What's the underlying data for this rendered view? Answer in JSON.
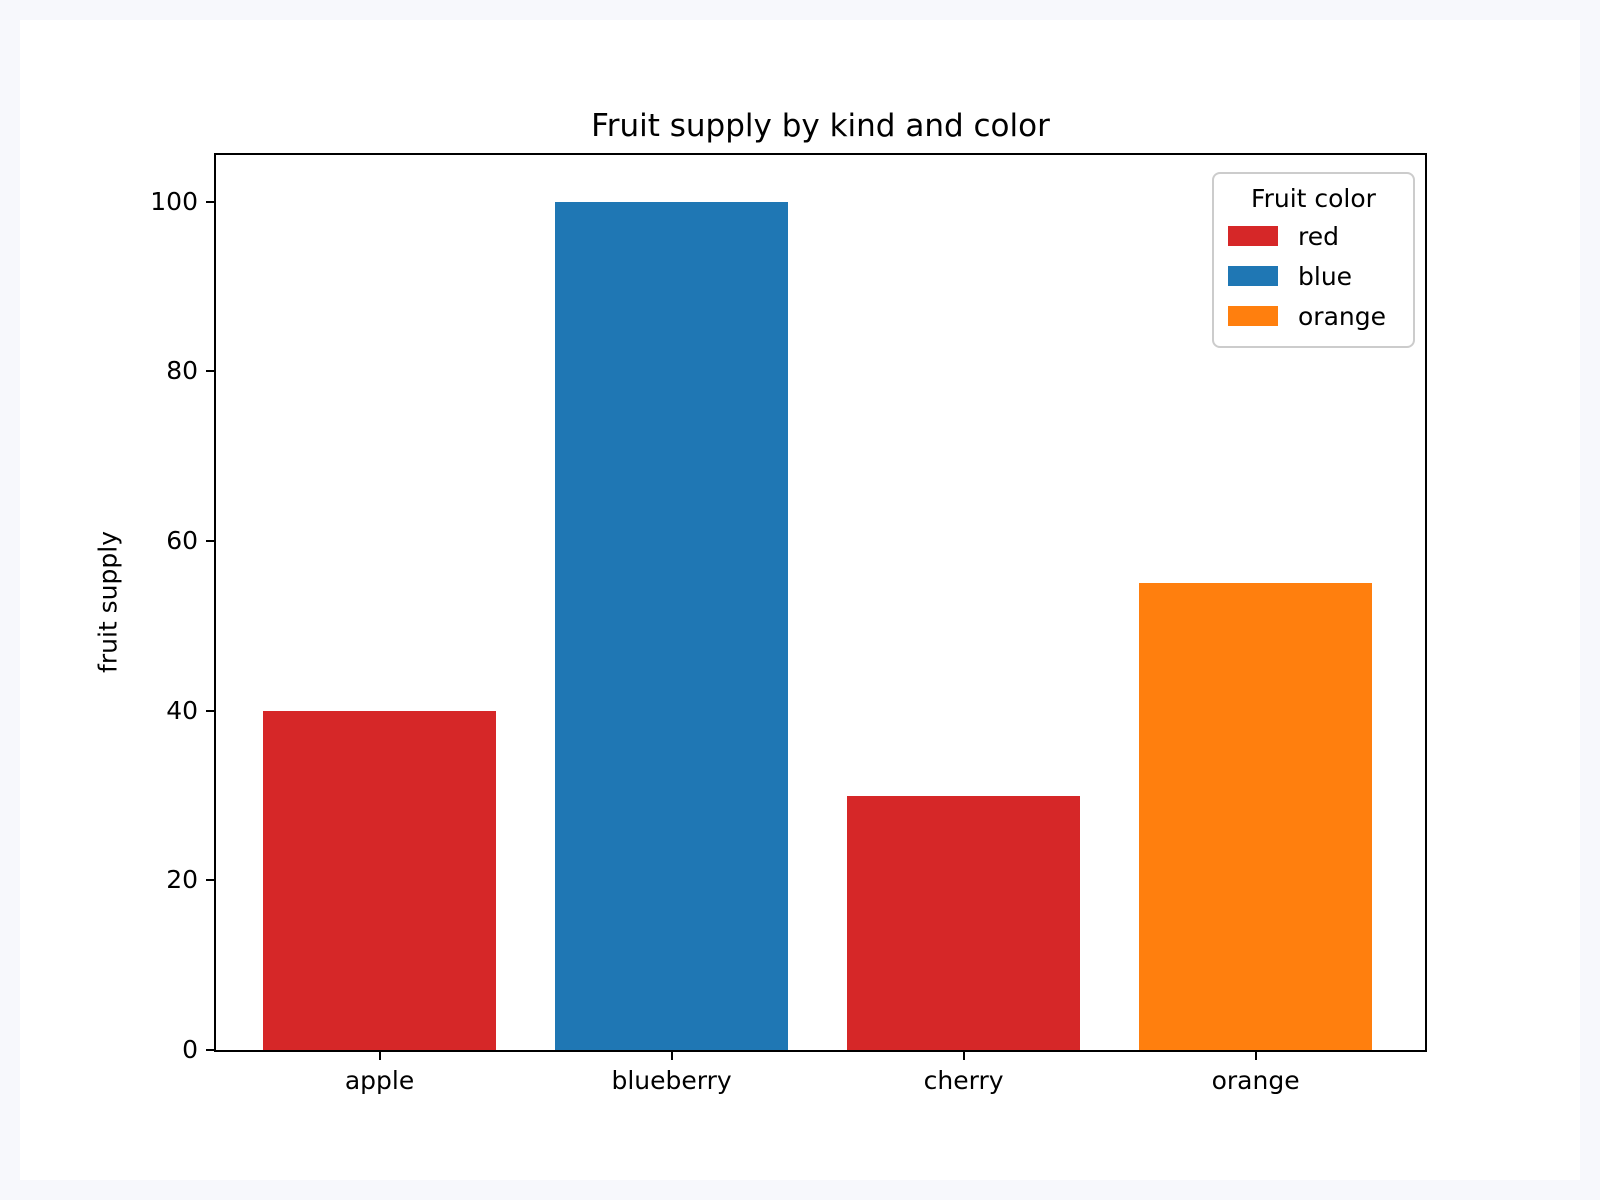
{
  "chart_data": {
    "type": "bar",
    "title": "Fruit supply by kind and color",
    "xlabel": "",
    "ylabel": "fruit supply",
    "categories": [
      "apple",
      "blueberry",
      "cherry",
      "orange"
    ],
    "values": [
      40,
      100,
      30,
      55
    ],
    "bar_colors": [
      "#d62728",
      "#1f77b4",
      "#d62728",
      "#ff7f0e"
    ],
    "yticks": [
      0,
      20,
      40,
      60,
      80,
      100
    ],
    "ylim": [
      0,
      105.5
    ],
    "xlim": [
      -0.56,
      3.58
    ],
    "bar_width": 0.8,
    "grid": false,
    "legend": {
      "title": "Fruit color",
      "position": "upper right",
      "entries": [
        {
          "label": "red",
          "color": "#d62728"
        },
        {
          "label": "blue",
          "color": "#1f77b4"
        },
        {
          "label": "orange",
          "color": "#ff7f0e"
        }
      ]
    },
    "colors": {
      "page_background": "#f7f8fc",
      "figure_background": "#ffffff",
      "axis": "#000000"
    }
  }
}
